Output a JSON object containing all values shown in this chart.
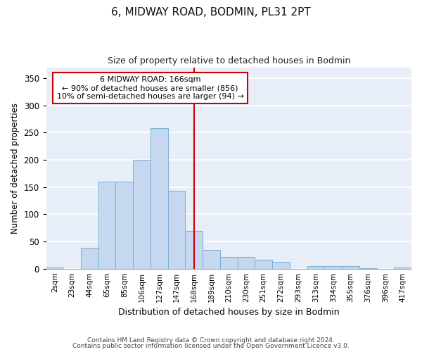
{
  "title": "6, MIDWAY ROAD, BODMIN, PL31 2PT",
  "subtitle": "Size of property relative to detached houses in Bodmin",
  "xlabel": "Distribution of detached houses by size in Bodmin",
  "ylabel": "Number of detached properties",
  "categories": [
    "2sqm",
    "23sqm",
    "44sqm",
    "65sqm",
    "85sqm",
    "106sqm",
    "127sqm",
    "147sqm",
    "168sqm",
    "189sqm",
    "210sqm",
    "230sqm",
    "251sqm",
    "272sqm",
    "293sqm",
    "313sqm",
    "334sqm",
    "355sqm",
    "376sqm",
    "396sqm",
    "417sqm"
  ],
  "values": [
    2,
    0,
    38,
    160,
    160,
    200,
    258,
    143,
    70,
    35,
    22,
    22,
    16,
    13,
    0,
    5,
    5,
    5,
    1,
    0,
    2
  ],
  "bar_color": "#c5d8f0",
  "bar_edge_color": "#7bafd4",
  "fig_background_color": "#ffffff",
  "ax_background_color": "#e8eef8",
  "grid_color": "#ffffff",
  "vline_index": 8,
  "vline_color": "#cc0000",
  "annotation_title": "6 MIDWAY ROAD: 166sqm",
  "annotation_line1": "← 90% of detached houses are smaller (856)",
  "annotation_line2": "10% of semi-detached houses are larger (94) →",
  "annotation_box_color": "#ffffff",
  "annotation_border_color": "#cc0000",
  "ylim": [
    0,
    370
  ],
  "yticks": [
    0,
    50,
    100,
    150,
    200,
    250,
    300,
    350
  ],
  "footer1": "Contains HM Land Registry data © Crown copyright and database right 2024.",
  "footer2": "Contains public sector information licensed under the Open Government Licence v3.0."
}
